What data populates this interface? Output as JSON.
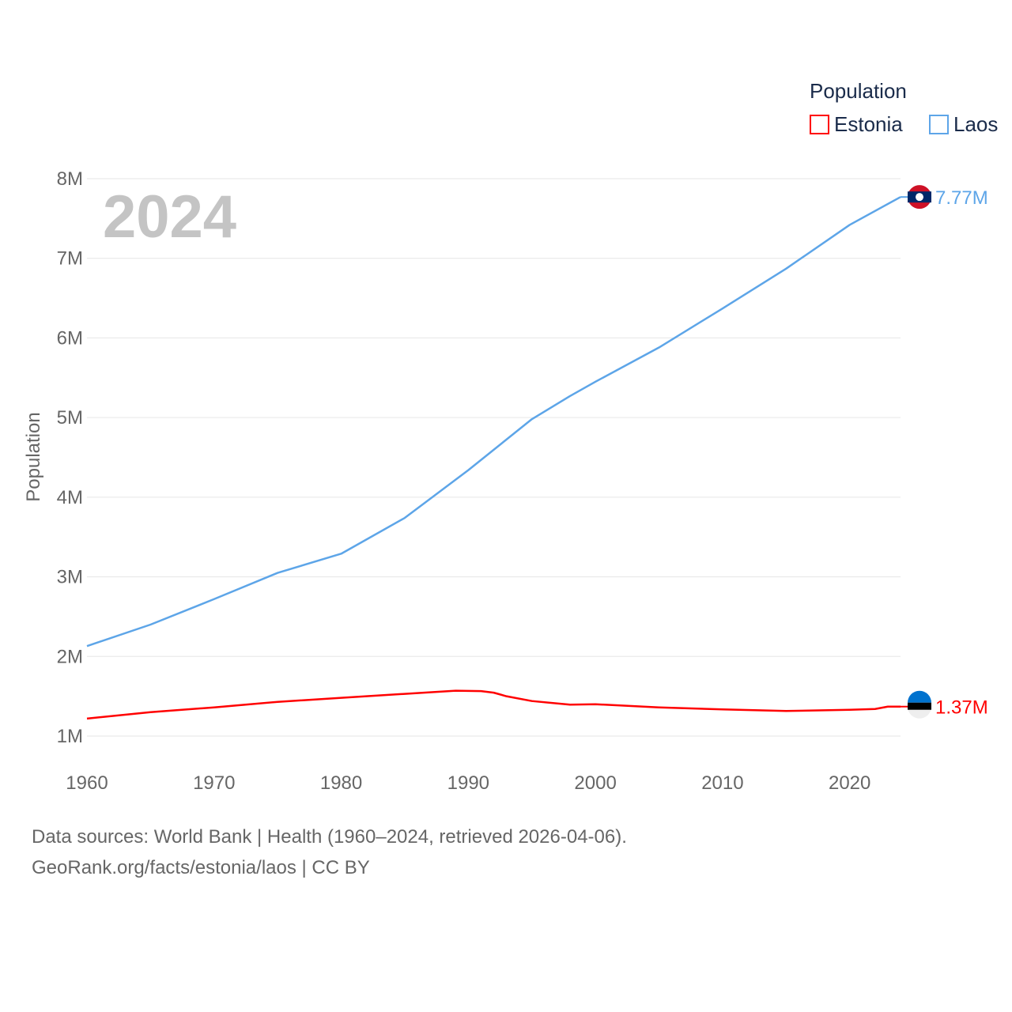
{
  "chart_data": {
    "type": "line",
    "title": "Population",
    "year_label": "2024",
    "ylabel": "Population",
    "xlabel": "",
    "xlim": [
      1960,
      2024
    ],
    "ylim": [
      1000000,
      8000000
    ],
    "x_ticks": [
      1960,
      1970,
      1980,
      1990,
      2000,
      2010,
      2020
    ],
    "x_tick_labels": [
      "1960",
      "1970",
      "1980",
      "1990",
      "2000",
      "2010",
      "2020"
    ],
    "y_ticks": [
      1000000,
      2000000,
      3000000,
      4000000,
      5000000,
      6000000,
      7000000,
      8000000
    ],
    "y_tick_labels": [
      "1M",
      "2M",
      "3M",
      "4M",
      "5M",
      "6M",
      "7M",
      "8M"
    ],
    "grid": true,
    "legend_position": "top-right",
    "series": [
      {
        "name": "Estonia",
        "color": "#ff0000",
        "end_label": "1.37M",
        "flag": "estonia-flag",
        "x": [
          1960,
          1965,
          1970,
          1975,
          1980,
          1985,
          1989,
          1991,
          1992,
          1993,
          1995,
          1998,
          2000,
          2005,
          2010,
          2015,
          2020,
          2022,
          2023,
          2024
        ],
        "values": [
          1220000,
          1300000,
          1360000,
          1430000,
          1480000,
          1530000,
          1570000,
          1565000,
          1545000,
          1500000,
          1440000,
          1395000,
          1400000,
          1360000,
          1335000,
          1315000,
          1330000,
          1340000,
          1370000,
          1370000
        ]
      },
      {
        "name": "Laos",
        "color": "#5da5e8",
        "end_label": "7.77M",
        "flag": "laos-flag",
        "x": [
          1960,
          1965,
          1970,
          1975,
          1980,
          1985,
          1990,
          1995,
          1998,
          2000,
          2005,
          2010,
          2015,
          2020,
          2024
        ],
        "values": [
          2130000,
          2400000,
          2720000,
          3050000,
          3290000,
          3740000,
          4340000,
          4980000,
          5270000,
          5450000,
          5880000,
          6370000,
          6870000,
          7420000,
          7770000
        ]
      }
    ]
  },
  "footer": {
    "line1": "Data sources: World Bank | Health (1960–2024, retrieved 2026-04-06).",
    "line2": "GeoRank.org/facts/estonia/laos | CC BY"
  }
}
